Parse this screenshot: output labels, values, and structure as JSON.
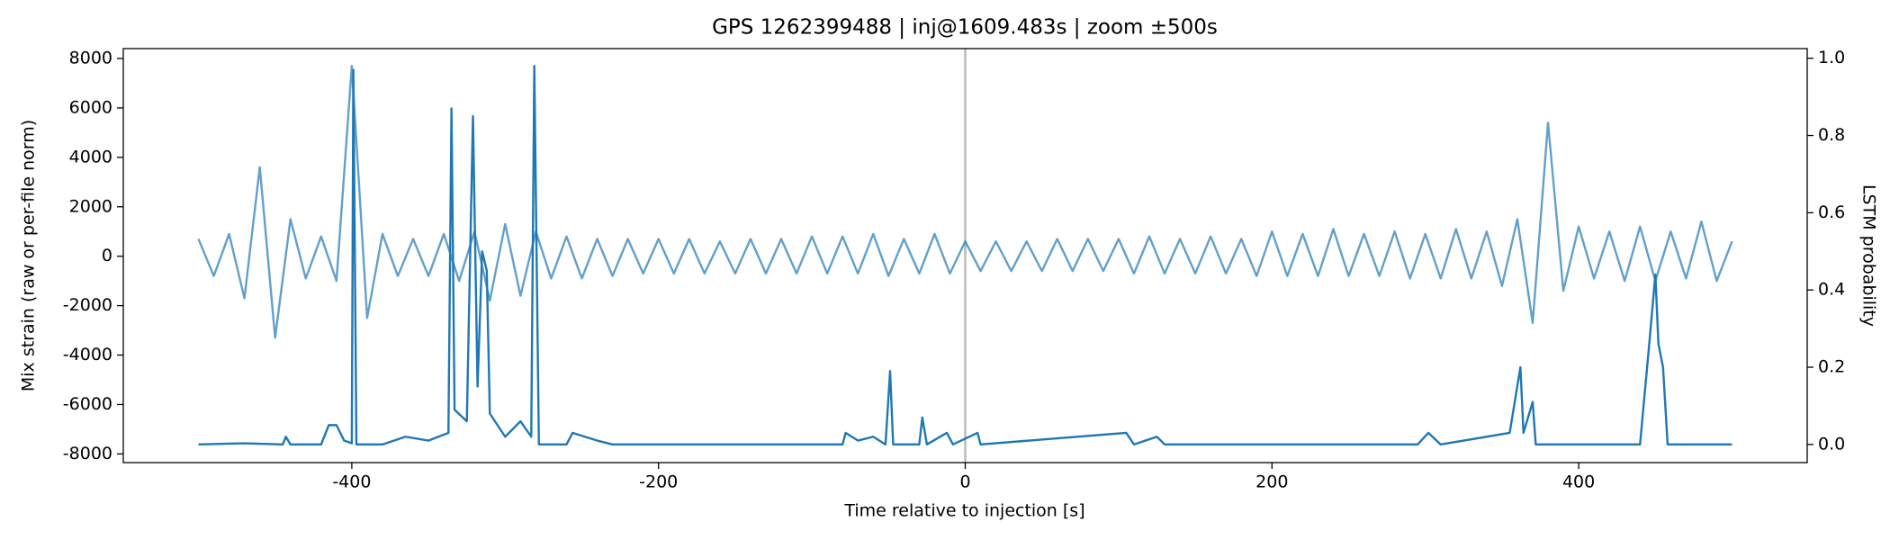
{
  "chart_data": {
    "type": "line",
    "title": "GPS 1262399488 | inj@1609.483s | zoom ±500s",
    "xlabel": "Time relative to injection [s]",
    "ylabel": "Mix strain (raw or per-file norm)",
    "y2label": "LSTM probability",
    "xlim": [
      -549,
      549
    ],
    "xticks": [
      -400,
      -200,
      0,
      200,
      400
    ],
    "ylim": [
      -8350,
      8400
    ],
    "yticks": [
      -8000,
      -6000,
      -4000,
      -2000,
      0,
      2000,
      4000,
      6000,
      8000
    ],
    "y2lim": [
      -0.047,
      1.025
    ],
    "y2ticks": [
      {
        "value": 0,
        "label": "0.0"
      },
      0.2,
      0.4,
      0.6,
      0.8,
      {
        "value": 1,
        "label": "1.0"
      }
    ],
    "vline": 0,
    "vline_color": "#bbbbbb",
    "series": [
      {
        "color": "#1f77b4",
        "opacity": 0.7,
        "x": [
          -500,
          -490,
          -480,
          -470,
          -460,
          -450,
          -440,
          -430,
          -420,
          -410,
          -400,
          -390,
          -380,
          -370,
          -360,
          -350,
          -340,
          -330,
          -320,
          -310,
          -300,
          -290,
          -280,
          -270,
          -260,
          -250,
          -240,
          -230,
          -220,
          -210,
          -200,
          -190,
          -180,
          -170,
          -160,
          -150,
          -140,
          -130,
          -120,
          -110,
          -100,
          -90,
          -80,
          -70,
          -60,
          -50,
          -40,
          -30,
          -20,
          -10,
          0,
          10,
          20,
          30,
          40,
          50,
          60,
          70,
          80,
          90,
          100,
          110,
          120,
          130,
          140,
          150,
          160,
          170,
          180,
          190,
          200,
          210,
          220,
          230,
          240,
          250,
          260,
          270,
          280,
          290,
          300,
          310,
          320,
          330,
          340,
          350,
          360,
          370,
          380,
          390,
          400,
          410,
          420,
          430,
          440,
          450,
          460,
          470,
          480,
          490,
          500
        ],
        "values": [
          700,
          -800,
          900,
          -1700,
          3600,
          -3300,
          1500,
          -900,
          800,
          -1000,
          7700,
          -2500,
          900,
          -800,
          700,
          -800,
          900,
          -1000,
          1000,
          -1800,
          1300,
          -1600,
          1000,
          -900,
          800,
          -900,
          700,
          -800,
          700,
          -700,
          700,
          -700,
          700,
          -700,
          600,
          -700,
          700,
          -700,
          700,
          -700,
          800,
          -700,
          800,
          -700,
          900,
          -800,
          700,
          -700,
          900,
          -700,
          600,
          -600,
          600,
          -600,
          600,
          -600,
          700,
          -600,
          700,
          -600,
          700,
          -700,
          800,
          -700,
          700,
          -700,
          800,
          -700,
          700,
          -800,
          1000,
          -800,
          900,
          -800,
          1100,
          -800,
          900,
          -800,
          1000,
          -900,
          900,
          -900,
          1100,
          -900,
          1000,
          -1200,
          1500,
          -2700,
          5400,
          -1400,
          1200,
          -900,
          1000,
          -1000,
          1200,
          -1000,
          1000,
          -900,
          1400,
          -1000,
          600
        ]
      },
      {
        "color": "#1f77b4",
        "opacity": 1,
        "axis": "y2",
        "x": [
          -500,
          -470,
          -445,
          -443,
          -440,
          -420,
          -415,
          -410,
          -405,
          -400,
          -399,
          -397,
          -380,
          -365,
          -350,
          -337,
          -335,
          -333,
          -325,
          -321,
          -318,
          -315,
          -312,
          -310,
          -300,
          -290,
          -283,
          -281,
          -278,
          -260,
          -256,
          -240,
          -230,
          -80,
          -78,
          -70,
          -60,
          -52,
          -49,
          -47,
          -30,
          -28,
          -25,
          -12,
          -8,
          8,
          10,
          105,
          110,
          125,
          130,
          295,
          302,
          310,
          355,
          362,
          364,
          370,
          372,
          440,
          446,
          450,
          452,
          455,
          458,
          500
        ],
        "values": [
          0,
          0.003,
          0,
          0.02,
          0,
          0,
          0.05,
          0.05,
          0.01,
          0.003,
          0.97,
          0,
          0,
          0.02,
          0.01,
          0.03,
          0.87,
          0.09,
          0.06,
          0.85,
          0.15,
          0.5,
          0.45,
          0.08,
          0.02,
          0.06,
          0.02,
          0.98,
          0,
          0,
          0.03,
          0.01,
          0,
          0,
          0.03,
          0.01,
          0.02,
          0,
          0.19,
          0,
          0,
          0.07,
          0,
          0.03,
          0,
          0.03,
          0,
          0.03,
          0,
          0.02,
          0,
          0,
          0.03,
          0,
          0.03,
          0.2,
          0.03,
          0.11,
          0,
          0,
          0.26,
          0.44,
          0.26,
          0.2,
          0,
          0
        ]
      }
    ]
  }
}
